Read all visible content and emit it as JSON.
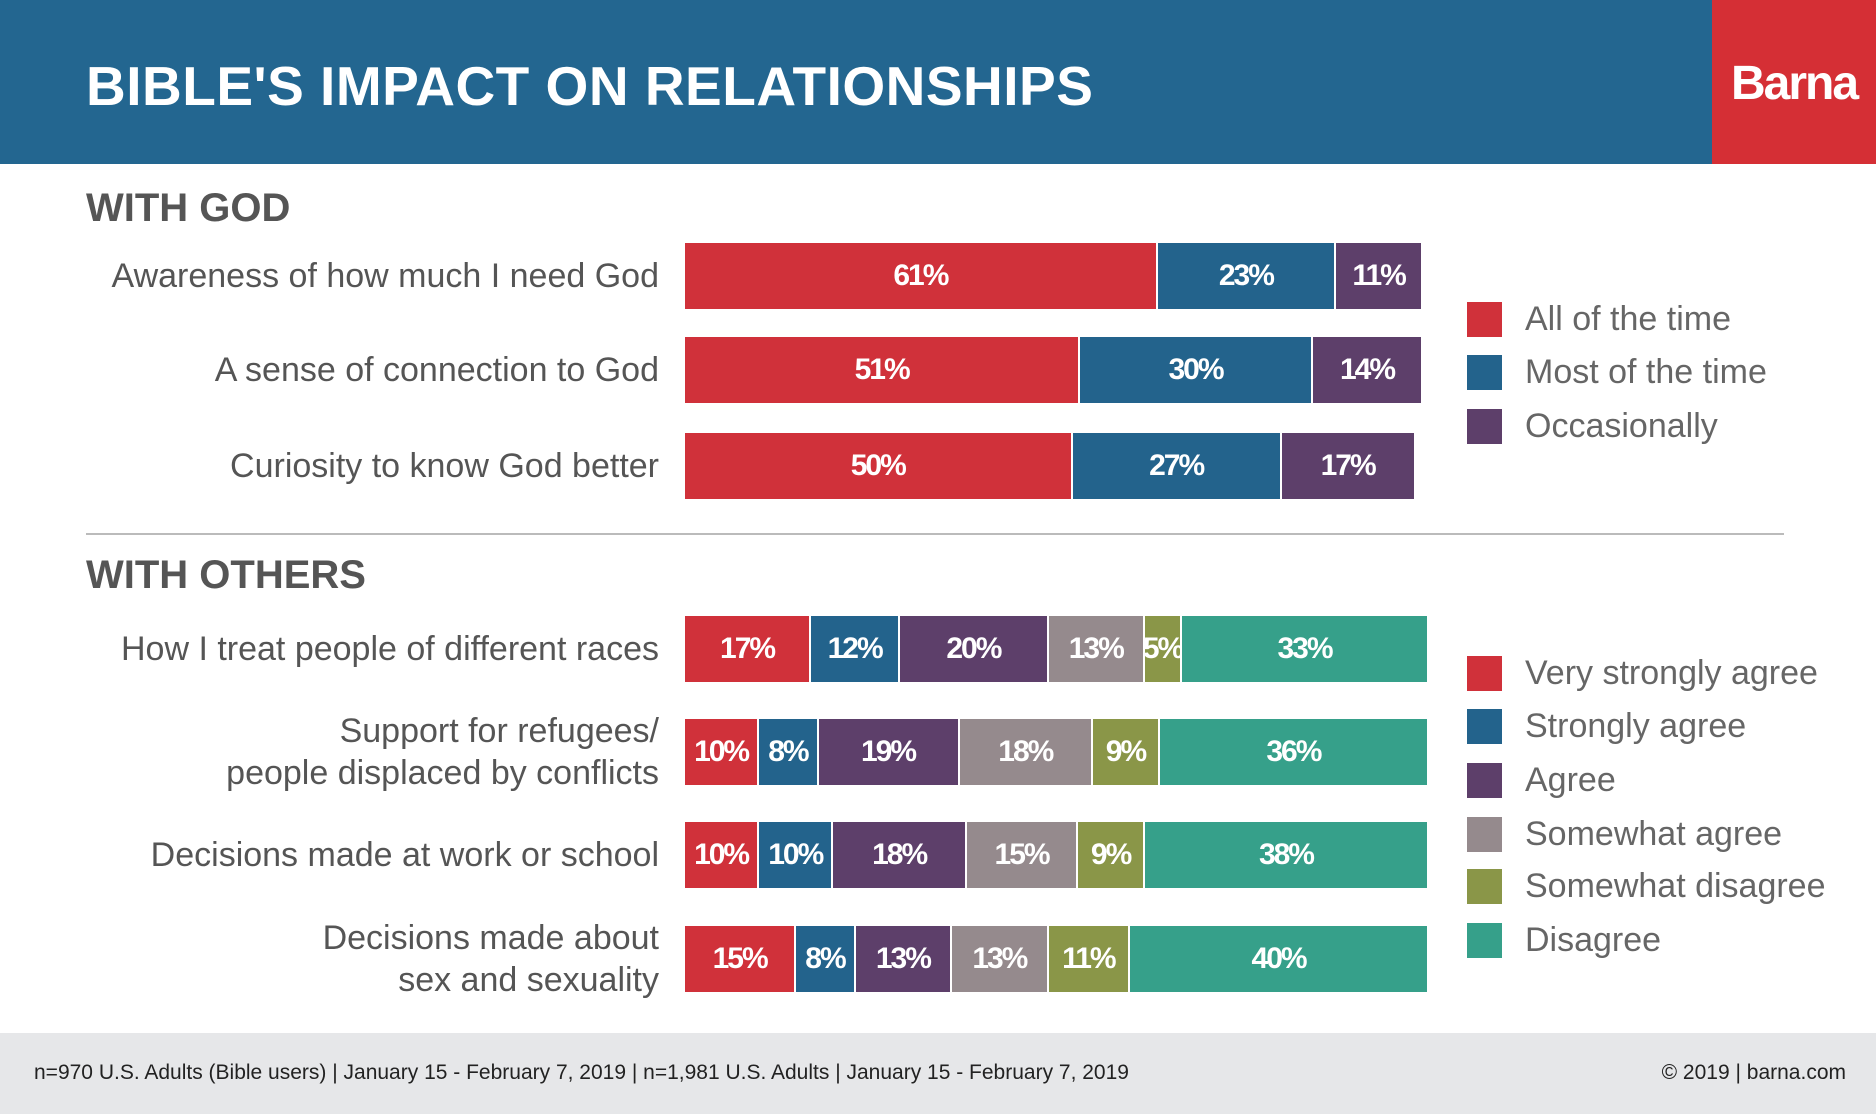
{
  "title": "BIBLE'S IMPACT ON RELATIONSHIPS",
  "logo": "Barna",
  "footer": {
    "left": "n=970 U.S. Adults (Bible users) | January 15 - February 7, 2019 | n=1,981 U.S. Adults | January 15 - February 7, 2019",
    "right": "© 2019 | barna.com"
  },
  "chart_data": [
    {
      "type": "bar",
      "orientation": "horizontal",
      "stacked": true,
      "title": "WITH GOD",
      "categories": [
        "Awareness of how much I need God",
        "A sense of connection to God",
        "Curiosity to know God better"
      ],
      "series": [
        {
          "name": "All of the time",
          "color": "#d0313a",
          "values": [
            61,
            51,
            50
          ]
        },
        {
          "name": "Most of the time",
          "color": "#23638c",
          "values": [
            23,
            30,
            27
          ]
        },
        {
          "name": "Occasionally",
          "color": "#5d3f6a",
          "values": [
            11,
            14,
            17
          ]
        }
      ],
      "legend": "right"
    },
    {
      "type": "bar",
      "orientation": "horizontal",
      "stacked": true,
      "title": "WITH OTHERS",
      "categories": [
        "How I treat people of different races",
        "Support for refugees/\npeople displaced by conflicts",
        "Decisions made at work or school",
        "Decisions made about\nsex and sexuality"
      ],
      "series": [
        {
          "name": "Very strongly agree",
          "color": "#d0313a",
          "values": [
            17,
            10,
            10,
            15
          ]
        },
        {
          "name": "Strongly agree",
          "color": "#23638c",
          "values": [
            12,
            8,
            10,
            8
          ]
        },
        {
          "name": "Agree",
          "color": "#5d3f6a",
          "values": [
            20,
            19,
            18,
            13
          ]
        },
        {
          "name": "Somewhat agree",
          "color": "#958a8d",
          "values": [
            13,
            18,
            15,
            13
          ]
        },
        {
          "name": "Somewhat disagree",
          "color": "#8a9648",
          "values": [
            5,
            9,
            9,
            11
          ]
        },
        {
          "name": "Disagree",
          "color": "#36a08a",
          "values": [
            33,
            36,
            38,
            40
          ]
        }
      ],
      "legend": "right"
    }
  ]
}
